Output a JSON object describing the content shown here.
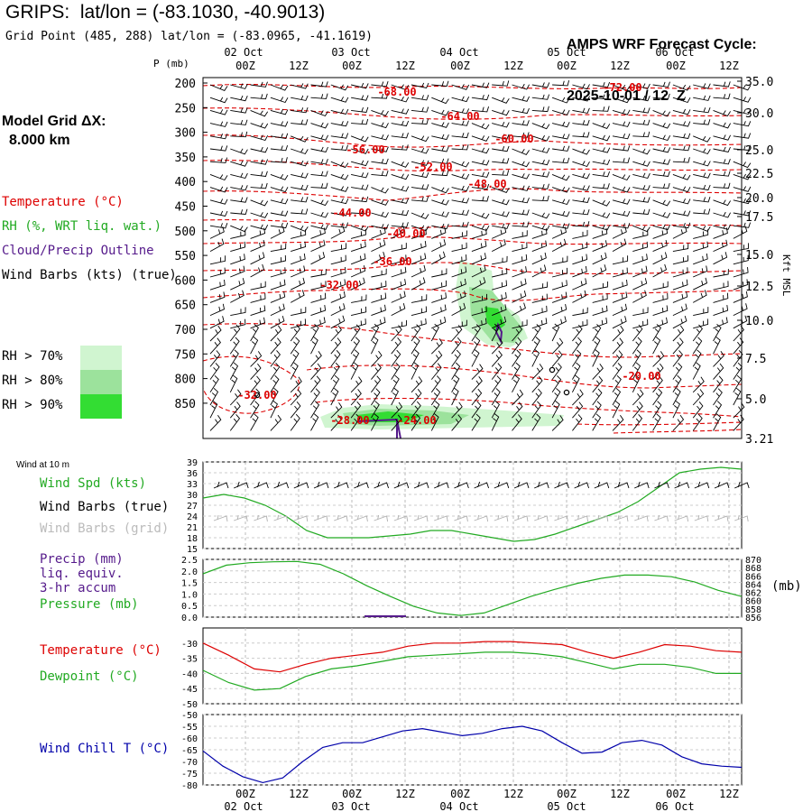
{
  "header": {
    "title": "GRIPS:  lat/lon = (-83.1030, -40.9013)",
    "subtitle": "Grid Point (485, 288) lat/lon = (-83.0965, -41.1619)",
    "cycle_line1": "AMPS WRF Forecast Cycle:",
    "cycle_line2": "2025-10-01 / 12  Z"
  },
  "model_grid": {
    "label": "Model Grid ΔX:",
    "value": "8.000 km"
  },
  "legend": {
    "temperature": "Temperature (°C)",
    "rh": "RH (%, WRT liq. wat.)",
    "cloud": "Cloud/Precip Outline",
    "wind": "Wind Barbs (kts) (true)",
    "rh70": "RH > 70%",
    "rh80": "RH > 80%",
    "rh90": "RH > 90%"
  },
  "colors": {
    "temperature": "#dd0000",
    "rh": "#22aa22",
    "cloud": "#551a8b",
    "wind": "#000000",
    "rh70": "#d0f5d0",
    "rh80": "#9ce29c",
    "rh90": "#33dd33",
    "windchill": "#0000aa",
    "grid_barbs": "#b0b0b0"
  },
  "time_axis": {
    "ticks": [
      "00Z",
      "12Z",
      "00Z",
      "12Z",
      "00Z",
      "12Z",
      "00Z",
      "12Z",
      "00Z",
      "12Z"
    ],
    "dates": [
      "02 Oct",
      "03 Oct",
      "04 Oct",
      "05 Oct",
      "06 Oct"
    ]
  },
  "section_labels": {
    "wind10m": "Wind at 10 m",
    "wind_spd": "Wind Spd (kts)",
    "wind_barbs_true": "Wind Barbs (true)",
    "wind_barbs_grid": "Wind Barbs (grid)",
    "precip1": "Precip (mm)",
    "precip2": "liq. equiv.",
    "precip3": "3-hr accum",
    "pressure": "Pressure (mb)",
    "pressure_unit": "(mb)",
    "temperature": "Temperature (°C)",
    "dewpoint": "Dewpoint (°C)",
    "windchill": "Wind Chill T (°C)",
    "kft": "Kft MSL"
  },
  "chart_data": [
    {
      "type": "heatmap",
      "ylabel": "P (mb)",
      "y_ticks": [
        200,
        250,
        300,
        350,
        400,
        450,
        500,
        550,
        600,
        650,
        700,
        750,
        800,
        850
      ],
      "right_ticks": [
        "35.0",
        "30.0",
        "25.0",
        "22.5",
        "20.0",
        "17.5",
        "15.0",
        "12.5",
        "10.0",
        "7.5",
        "5.0",
        "3.21"
      ],
      "contour_labels": [
        "-68.00",
        "-72.00",
        "-64.00",
        "-60.00",
        "-56.00",
        "-52.00",
        "-48.00",
        "-44.00",
        "-40.00",
        "-36.00",
        "-32.00",
        "-20.00",
        "-32.00",
        "-28.00",
        "-24.00"
      ]
    },
    {
      "type": "line",
      "ylim": [
        15,
        39
      ],
      "y_ticks": [
        15,
        18,
        21,
        24,
        27,
        30,
        33,
        36,
        39
      ],
      "series": [
        {
          "name": "Wind Spd (kts)",
          "values": [
            29,
            30,
            29,
            27,
            24,
            20,
            18,
            18,
            18,
            18.5,
            19,
            20,
            20,
            19,
            18,
            17,
            17.5,
            19,
            21,
            23,
            25,
            28,
            32,
            36,
            37,
            37.5,
            37
          ]
        }
      ]
    },
    {
      "type": "line",
      "ylim": [
        0,
        2.5
      ],
      "y_ticks": [
        "0.0",
        "0.5",
        "1.0",
        "1.5",
        "2.0",
        "2.5"
      ],
      "right_ticks": [
        "856",
        "858",
        "860",
        "862",
        "864",
        "866",
        "868",
        "870"
      ],
      "series": [
        {
          "name": "Pressure (mb)",
          "values": [
            866.5,
            868.6,
            869.2,
            869.4,
            869.5,
            868.8,
            866.5,
            863.6,
            861,
            858.6,
            857,
            856.4,
            857,
            859,
            861,
            862.7,
            864.2,
            865.4,
            866.2,
            866.2,
            865.8,
            864.5,
            862.5,
            861
          ]
        }
      ]
    },
    {
      "type": "line",
      "ylim": [
        -50,
        -25
      ],
      "y_ticks": [
        -50,
        -45,
        -40,
        -35,
        -30
      ],
      "series": [
        {
          "name": "Temperature (°C)",
          "values": [
            -30,
            -34,
            -38.5,
            -39.5,
            -37,
            -35,
            -34,
            -33,
            -31,
            -30,
            -30,
            -29.5,
            -29.5,
            -30,
            -30.5,
            -33,
            -35,
            -33,
            -30.5,
            -31,
            -32.5,
            -33
          ]
        },
        {
          "name": "Dewpoint (°C)",
          "values": [
            -39,
            -43,
            -45.5,
            -45,
            -41,
            -38.5,
            -37.5,
            -36,
            -34.5,
            -34,
            -33.5,
            -33,
            -33,
            -33.5,
            -34.5,
            -36.5,
            -38.5,
            -37,
            -37,
            -38,
            -40,
            -40
          ]
        }
      ]
    },
    {
      "type": "line",
      "ylim": [
        -80,
        -50
      ],
      "y_ticks": [
        -80,
        -75,
        -70,
        -65,
        -60,
        -55,
        -50
      ],
      "series": [
        {
          "name": "Wind Chill T (°C)",
          "values": [
            -65.5,
            -72,
            -76.5,
            -79,
            -77,
            -70,
            -64,
            -62,
            -62,
            -59.5,
            -57,
            -56,
            -57.5,
            -59,
            -58,
            -56,
            -55,
            -57,
            -62,
            -66.5,
            -66,
            -62,
            -61,
            -63,
            -68,
            -71,
            -72,
            -72.5
          ]
        }
      ]
    }
  ]
}
